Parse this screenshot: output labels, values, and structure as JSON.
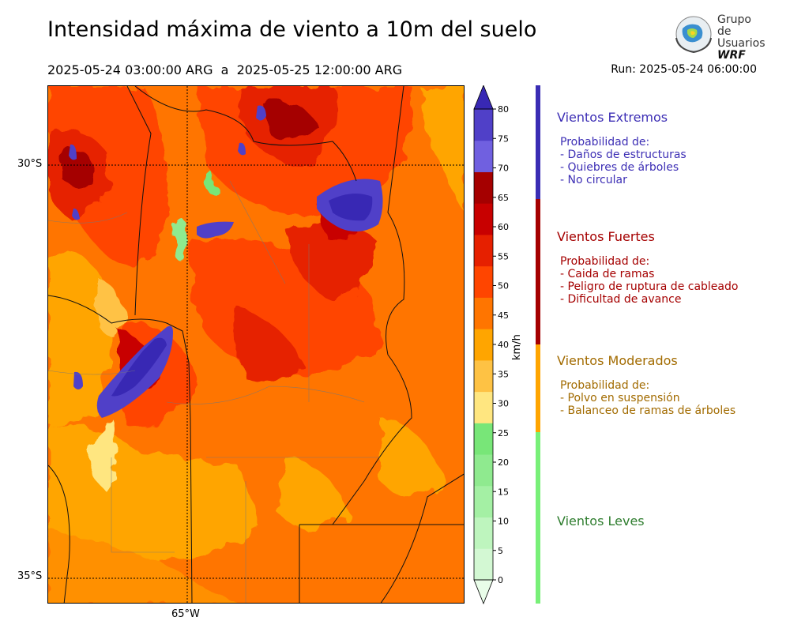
{
  "title": "Intensidad máxima de viento a 10m del suelo",
  "subtitle": "2025-05-24 03:00:00 ARG  a  2025-05-25 12:00:00 ARG",
  "run": "Run: 2025-05-24 06:00:00",
  "logo": {
    "line1": "Grupo de",
    "line2": "Usuarios",
    "line3": "WRF"
  },
  "axes": {
    "lat_labels": [
      "30°S",
      "35°S"
    ],
    "lon_labels": [
      "65°W"
    ]
  },
  "colorbar": {
    "unit": "km/h",
    "ticks": [
      "0",
      "5",
      "10",
      "15",
      "20",
      "25",
      "30",
      "35",
      "40",
      "45",
      "50",
      "55",
      "60",
      "65",
      "70",
      "75",
      "80"
    ],
    "colors": [
      "#e9fde9",
      "#d3f8d3",
      "#bef5be",
      "#a4f0a4",
      "#8fea8f",
      "#78e678",
      "#ffe680",
      "#fec244",
      "#ffa500",
      "#ff7500",
      "#ff4500",
      "#e62000",
      "#c80000",
      "#a50000",
      "#7060e0",
      "#5040c8",
      "#3828b4"
    ]
  },
  "legend": [
    {
      "heading": "Vientos Extremos",
      "color": "#3d2fb5",
      "intro": "Probabilidad de:",
      "items": [
        "- Daños de estructuras",
        "- Quiebres de árboles",
        "- No circular"
      ]
    },
    {
      "heading": "Vientos Fuertes",
      "color": "#a50000",
      "intro": "Probabilidad de:",
      "items": [
        "- Caida de ramas",
        "- Peligro de ruptura de cableado",
        "- Dificultad de avance"
      ]
    },
    {
      "heading": "Vientos Moderados",
      "color": "#a26b00",
      "intro": "Probabilidad de:",
      "items": [
        "- Polvo en suspensión",
        "- Balanceo de ramas de árboles"
      ]
    },
    {
      "heading": "Vientos Leves",
      "color": "#2e7d2e",
      "intro": "",
      "items": []
    }
  ],
  "legend_bar_colors": [
    "#3a2db4",
    "#a50000",
    "#ffa500",
    "#78f078"
  ]
}
